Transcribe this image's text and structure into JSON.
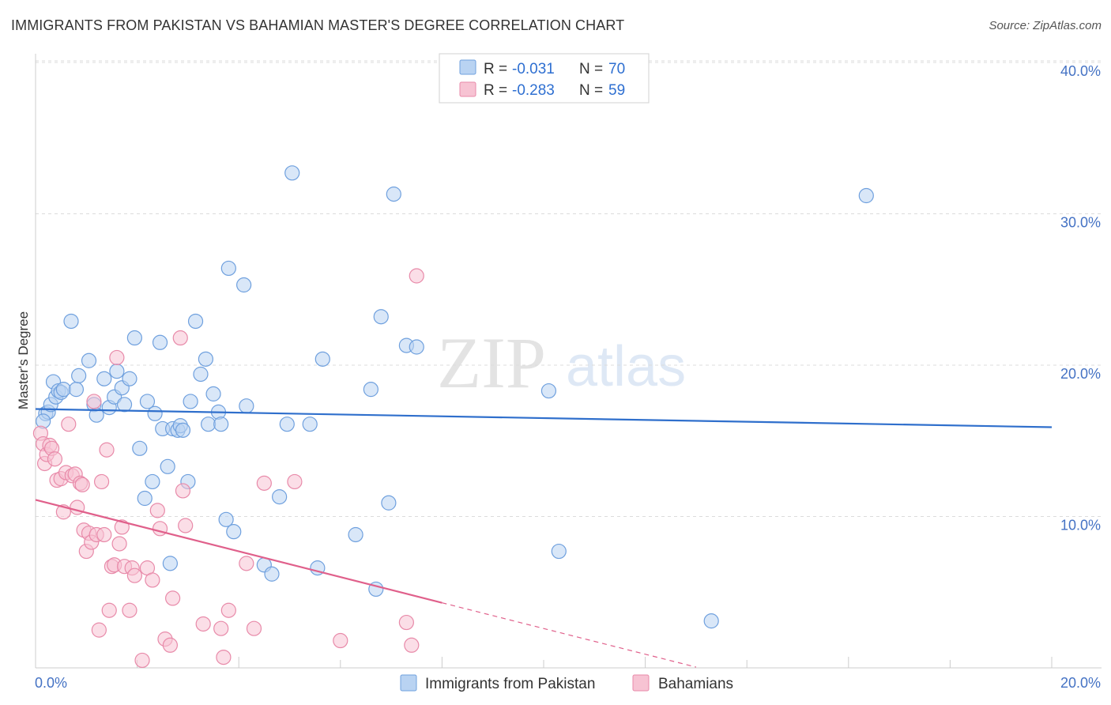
{
  "title": "IMMIGRANTS FROM PAKISTAN VS BAHAMIAN MASTER'S DEGREE CORRELATION CHART",
  "source": "Source: ZipAtlas.com",
  "watermark": {
    "zip": "ZIP",
    "atlas": "atlas"
  },
  "chart_data": {
    "type": "scatter",
    "ylabel": "Master's Degree",
    "xlim": [
      0,
      20
    ],
    "ylim": [
      0,
      40
    ],
    "x_ticks": [
      "0.0%",
      "20.0%"
    ],
    "y_ticks": [
      {
        "value": 10,
        "label": "10.0%"
      },
      {
        "value": 20,
        "label": "20.0%"
      },
      {
        "value": 30,
        "label": "30.0%"
      },
      {
        "value": 40,
        "label": "40.0%"
      }
    ],
    "legend": {
      "rows": [
        {
          "r_label": "R =",
          "r_value": "-0.031",
          "n_label": "N =",
          "n_value": "70"
        },
        {
          "r_label": "R =",
          "r_value": "-0.283",
          "n_label": "N =",
          "n_value": "59"
        }
      ]
    },
    "series": [
      {
        "name": "Immigrants from Pakistan",
        "color": "#6fa0de",
        "fill": "#b9d3f2",
        "trend": {
          "x0": 0,
          "y0": 17.1,
          "x1": 20,
          "y1": 15.9,
          "color": "#2f6fcc"
        },
        "points": [
          [
            0.2,
            16.8
          ],
          [
            0.25,
            16.9
          ],
          [
            0.3,
            17.4
          ],
          [
            0.35,
            18.9
          ],
          [
            0.4,
            17.9
          ],
          [
            0.45,
            18.3
          ],
          [
            0.5,
            18.2
          ],
          [
            0.55,
            18.4
          ],
          [
            0.7,
            22.9
          ],
          [
            0.8,
            18.4
          ],
          [
            0.85,
            19.3
          ],
          [
            1.05,
            20.3
          ],
          [
            1.15,
            17.4
          ],
          [
            1.2,
            16.7
          ],
          [
            1.35,
            19.1
          ],
          [
            1.45,
            17.2
          ],
          [
            1.55,
            17.9
          ],
          [
            1.6,
            19.6
          ],
          [
            1.7,
            18.5
          ],
          [
            1.75,
            17.4
          ],
          [
            1.85,
            19.1
          ],
          [
            1.95,
            21.8
          ],
          [
            2.05,
            14.5
          ],
          [
            2.15,
            11.2
          ],
          [
            2.2,
            17.6
          ],
          [
            2.3,
            12.3
          ],
          [
            2.35,
            16.8
          ],
          [
            2.45,
            21.5
          ],
          [
            2.5,
            15.8
          ],
          [
            2.6,
            13.3
          ],
          [
            2.65,
            6.9
          ],
          [
            2.7,
            15.8
          ],
          [
            2.8,
            15.7
          ],
          [
            2.85,
            16.0
          ],
          [
            2.9,
            15.7
          ],
          [
            3.0,
            12.3
          ],
          [
            3.05,
            17.6
          ],
          [
            3.15,
            22.9
          ],
          [
            3.25,
            19.4
          ],
          [
            3.35,
            20.4
          ],
          [
            3.4,
            16.1
          ],
          [
            3.5,
            18.1
          ],
          [
            3.6,
            16.9
          ],
          [
            3.65,
            16.1
          ],
          [
            3.8,
            26.4
          ],
          [
            3.75,
            9.8
          ],
          [
            3.9,
            9.0
          ],
          [
            4.1,
            25.3
          ],
          [
            4.15,
            17.3
          ],
          [
            4.5,
            6.8
          ],
          [
            4.65,
            6.2
          ],
          [
            4.8,
            11.3
          ],
          [
            4.95,
            16.1
          ],
          [
            5.05,
            32.7
          ],
          [
            5.4,
            16.1
          ],
          [
            5.55,
            6.6
          ],
          [
            5.65,
            20.4
          ],
          [
            6.3,
            8.8
          ],
          [
            6.6,
            18.4
          ],
          [
            6.7,
            5.2
          ],
          [
            6.8,
            23.2
          ],
          [
            6.95,
            10.9
          ],
          [
            7.05,
            31.3
          ],
          [
            7.3,
            21.3
          ],
          [
            7.5,
            21.2
          ],
          [
            10.1,
            18.3
          ],
          [
            10.3,
            7.7
          ],
          [
            13.3,
            3.1
          ],
          [
            16.35,
            31.2
          ],
          [
            0.15,
            16.3
          ]
        ]
      },
      {
        "name": "Bahamians",
        "color": "#e88aa9",
        "fill": "#f7c3d3",
        "trend": {
          "x0": 0,
          "y0": 11.1,
          "x1": 8.0,
          "y1": 4.3,
          "color": "#e0608b",
          "dash_x1": 13.0,
          "dash_y1": 0.05
        },
        "points": [
          [
            0.1,
            15.5
          ],
          [
            0.15,
            14.8
          ],
          [
            0.18,
            13.5
          ],
          [
            0.22,
            14.1
          ],
          [
            0.28,
            14.7
          ],
          [
            0.32,
            14.5
          ],
          [
            0.38,
            13.8
          ],
          [
            0.42,
            12.4
          ],
          [
            0.5,
            12.5
          ],
          [
            0.55,
            10.3
          ],
          [
            0.6,
            12.9
          ],
          [
            0.65,
            16.1
          ],
          [
            0.72,
            12.7
          ],
          [
            0.78,
            12.8
          ],
          [
            0.82,
            10.6
          ],
          [
            0.88,
            12.2
          ],
          [
            0.92,
            12.1
          ],
          [
            0.95,
            9.1
          ],
          [
            1.0,
            7.7
          ],
          [
            1.05,
            8.9
          ],
          [
            1.1,
            8.3
          ],
          [
            1.15,
            17.6
          ],
          [
            1.2,
            8.8
          ],
          [
            1.25,
            2.5
          ],
          [
            1.3,
            12.3
          ],
          [
            1.35,
            8.8
          ],
          [
            1.4,
            14.4
          ],
          [
            1.45,
            3.8
          ],
          [
            1.5,
            6.7
          ],
          [
            1.55,
            6.8
          ],
          [
            1.6,
            20.5
          ],
          [
            1.65,
            8.2
          ],
          [
            1.7,
            9.3
          ],
          [
            1.75,
            6.7
          ],
          [
            1.85,
            3.8
          ],
          [
            1.9,
            6.6
          ],
          [
            1.95,
            6.1
          ],
          [
            2.1,
            0.5
          ],
          [
            2.2,
            6.6
          ],
          [
            2.3,
            5.8
          ],
          [
            2.4,
            10.4
          ],
          [
            2.45,
            9.2
          ],
          [
            2.55,
            1.9
          ],
          [
            2.65,
            1.5
          ],
          [
            2.7,
            4.6
          ],
          [
            2.85,
            21.8
          ],
          [
            2.9,
            11.7
          ],
          [
            2.95,
            9.4
          ],
          [
            3.3,
            2.9
          ],
          [
            3.65,
            2.6
          ],
          [
            3.7,
            0.7
          ],
          [
            3.8,
            3.8
          ],
          [
            4.15,
            6.9
          ],
          [
            4.3,
            2.6
          ],
          [
            4.5,
            12.2
          ],
          [
            5.1,
            12.3
          ],
          [
            6.0,
            1.8
          ],
          [
            7.3,
            3.0
          ],
          [
            7.4,
            1.5
          ],
          [
            7.5,
            25.9
          ]
        ]
      }
    ]
  }
}
